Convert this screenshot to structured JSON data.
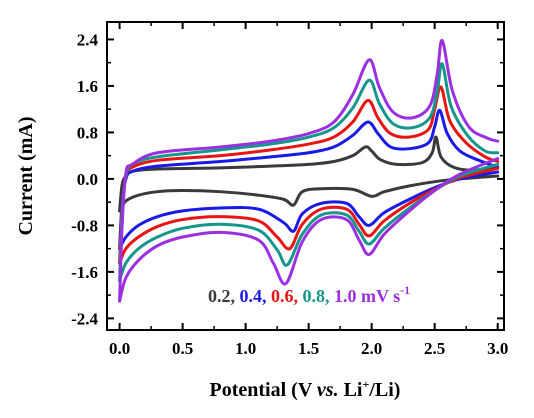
{
  "chart_data": {
    "type": "line",
    "xlabel": {
      "prefix": "Potential (V ",
      "vs": "vs.",
      "mid": " Li",
      "sup": "+",
      "suffix": "/Li)"
    },
    "ylabel": "Current (mA)",
    "xlim": [
      -0.1,
      3.05
    ],
    "ylim": [
      -2.6,
      2.7
    ],
    "xticks": [
      "0.0",
      "0.5",
      "1.0",
      "1.5",
      "2.0",
      "2.5",
      "3.0"
    ],
    "yticks": [
      "2.4",
      "1.6",
      "0.8",
      "0.0",
      "-0.8",
      "-1.6",
      "-2.4"
    ],
    "legend": {
      "entries": [
        {
          "label": "0.2",
          "color": "#3a3a3a"
        },
        {
          "label": "0.4",
          "color": "#1a1ae6"
        },
        {
          "label": "0.6",
          "color": "#e81414"
        },
        {
          "label": "0.8",
          "color": "#14968c"
        },
        {
          "label": "1.0",
          "color": "#9b30e0"
        }
      ],
      "separator": ", ",
      "unit": "mV s",
      "unit_sup": "-1"
    },
    "series": [
      {
        "color": "#3a3a3a",
        "scale": 0.27,
        "oxidation": [
          [
            0.0,
            -0.55
          ],
          [
            0.02,
            -0.1
          ],
          [
            0.05,
            0.05
          ],
          [
            0.1,
            0.13
          ],
          [
            0.3,
            0.17
          ],
          [
            0.8,
            0.19
          ],
          [
            1.2,
            0.22
          ],
          [
            1.5,
            0.25
          ],
          [
            1.7,
            0.3
          ],
          [
            1.85,
            0.4
          ],
          [
            1.95,
            0.55
          ],
          [
            2.0,
            0.48
          ],
          [
            2.07,
            0.33
          ],
          [
            2.2,
            0.25
          ],
          [
            2.4,
            0.28
          ],
          [
            2.48,
            0.45
          ],
          [
            2.51,
            0.72
          ],
          [
            2.55,
            0.38
          ],
          [
            2.65,
            0.2
          ],
          [
            2.8,
            0.15
          ],
          [
            3.0,
            0.2
          ]
        ],
        "reduction": [
          [
            3.0,
            0.05
          ],
          [
            2.6,
            -0.02
          ],
          [
            2.3,
            -0.12
          ],
          [
            2.1,
            -0.22
          ],
          [
            2.0,
            -0.3
          ],
          [
            1.85,
            -0.18
          ],
          [
            1.6,
            -0.17
          ],
          [
            1.45,
            -0.22
          ],
          [
            1.38,
            -0.45
          ],
          [
            1.3,
            -0.35
          ],
          [
            1.1,
            -0.28
          ],
          [
            0.8,
            -0.22
          ],
          [
            0.5,
            -0.2
          ],
          [
            0.3,
            -0.22
          ],
          [
            0.15,
            -0.28
          ],
          [
            0.05,
            -0.38
          ],
          [
            0.0,
            -0.55
          ]
        ]
      },
      {
        "color": "#1a1ae6",
        "scale": 0.54,
        "oxidation": [
          [
            0.0,
            -1.2
          ],
          [
            0.02,
            -0.4
          ],
          [
            0.05,
            0.0
          ],
          [
            0.1,
            0.13
          ],
          [
            0.3,
            0.22
          ],
          [
            0.8,
            0.3
          ],
          [
            1.2,
            0.38
          ],
          [
            1.5,
            0.45
          ],
          [
            1.7,
            0.55
          ],
          [
            1.85,
            0.75
          ],
          [
            1.97,
            0.98
          ],
          [
            2.05,
            0.78
          ],
          [
            2.15,
            0.55
          ],
          [
            2.3,
            0.52
          ],
          [
            2.45,
            0.62
          ],
          [
            2.5,
            0.9
          ],
          [
            2.54,
            1.18
          ],
          [
            2.6,
            0.78
          ],
          [
            2.7,
            0.48
          ],
          [
            2.85,
            0.32
          ],
          [
            3.0,
            0.2
          ]
        ],
        "reduction": [
          [
            3.0,
            0.12
          ],
          [
            2.7,
            0.0
          ],
          [
            2.5,
            -0.15
          ],
          [
            2.3,
            -0.35
          ],
          [
            2.1,
            -0.58
          ],
          [
            1.98,
            -0.8
          ],
          [
            1.9,
            -0.65
          ],
          [
            1.8,
            -0.42
          ],
          [
            1.6,
            -0.42
          ],
          [
            1.45,
            -0.6
          ],
          [
            1.38,
            -0.9
          ],
          [
            1.3,
            -0.75
          ],
          [
            1.1,
            -0.52
          ],
          [
            0.8,
            -0.5
          ],
          [
            0.5,
            -0.55
          ],
          [
            0.3,
            -0.65
          ],
          [
            0.15,
            -0.8
          ],
          [
            0.05,
            -1.0
          ],
          [
            0.0,
            -1.2
          ]
        ]
      },
      {
        "color": "#e81414",
        "scale": 0.75,
        "oxidation": [
          [
            0.0,
            -1.45
          ],
          [
            0.02,
            -0.5
          ],
          [
            0.05,
            0.05
          ],
          [
            0.1,
            0.2
          ],
          [
            0.3,
            0.32
          ],
          [
            0.8,
            0.4
          ],
          [
            1.2,
            0.5
          ],
          [
            1.5,
            0.6
          ],
          [
            1.7,
            0.72
          ],
          [
            1.85,
            0.98
          ],
          [
            1.97,
            1.35
          ],
          [
            2.05,
            1.05
          ],
          [
            2.15,
            0.78
          ],
          [
            2.3,
            0.72
          ],
          [
            2.45,
            0.85
          ],
          [
            2.5,
            1.2
          ],
          [
            2.55,
            1.58
          ],
          [
            2.62,
            1.0
          ],
          [
            2.75,
            0.62
          ],
          [
            2.9,
            0.38
          ],
          [
            3.0,
            0.3
          ]
        ],
        "reduction": [
          [
            3.0,
            0.18
          ],
          [
            2.7,
            0.02
          ],
          [
            2.5,
            -0.18
          ],
          [
            2.3,
            -0.42
          ],
          [
            2.1,
            -0.72
          ],
          [
            1.98,
            -0.98
          ],
          [
            1.9,
            -0.78
          ],
          [
            1.8,
            -0.52
          ],
          [
            1.6,
            -0.52
          ],
          [
            1.45,
            -0.78
          ],
          [
            1.35,
            -1.2
          ],
          [
            1.25,
            -1.0
          ],
          [
            1.1,
            -0.72
          ],
          [
            0.8,
            -0.65
          ],
          [
            0.5,
            -0.7
          ],
          [
            0.3,
            -0.82
          ],
          [
            0.15,
            -1.0
          ],
          [
            0.05,
            -1.2
          ],
          [
            0.0,
            -1.45
          ]
        ]
      },
      {
        "color": "#14968c",
        "scale": 0.9,
        "oxidation": [
          [
            0.0,
            -1.75
          ],
          [
            0.02,
            -0.6
          ],
          [
            0.05,
            0.05
          ],
          [
            0.1,
            0.25
          ],
          [
            0.3,
            0.38
          ],
          [
            0.8,
            0.5
          ],
          [
            1.2,
            0.6
          ],
          [
            1.5,
            0.72
          ],
          [
            1.7,
            0.88
          ],
          [
            1.85,
            1.22
          ],
          [
            1.98,
            1.7
          ],
          [
            2.06,
            1.3
          ],
          [
            2.17,
            0.95
          ],
          [
            2.32,
            0.88
          ],
          [
            2.46,
            1.05
          ],
          [
            2.52,
            1.5
          ],
          [
            2.56,
            1.98
          ],
          [
            2.63,
            1.25
          ],
          [
            2.76,
            0.75
          ],
          [
            2.9,
            0.48
          ],
          [
            3.0,
            0.45
          ]
        ],
        "reduction": [
          [
            3.0,
            0.25
          ],
          [
            2.7,
            0.05
          ],
          [
            2.5,
            -0.2
          ],
          [
            2.3,
            -0.5
          ],
          [
            2.1,
            -0.85
          ],
          [
            1.98,
            -1.12
          ],
          [
            1.9,
            -0.9
          ],
          [
            1.8,
            -0.62
          ],
          [
            1.6,
            -0.62
          ],
          [
            1.45,
            -0.95
          ],
          [
            1.33,
            -1.48
          ],
          [
            1.25,
            -1.22
          ],
          [
            1.1,
            -0.88
          ],
          [
            0.8,
            -0.78
          ],
          [
            0.5,
            -0.85
          ],
          [
            0.3,
            -1.0
          ],
          [
            0.15,
            -1.2
          ],
          [
            0.05,
            -1.45
          ],
          [
            0.0,
            -1.75
          ]
        ]
      },
      {
        "color": "#9b30e0",
        "scale": 1.0,
        "oxidation": [
          [
            0.0,
            -2.1
          ],
          [
            0.02,
            -0.8
          ],
          [
            0.05,
            0.1
          ],
          [
            0.1,
            0.25
          ],
          [
            0.3,
            0.45
          ],
          [
            0.8,
            0.55
          ],
          [
            1.2,
            0.65
          ],
          [
            1.5,
            0.78
          ],
          [
            1.7,
            0.98
          ],
          [
            1.85,
            1.45
          ],
          [
            1.98,
            2.05
          ],
          [
            2.06,
            1.58
          ],
          [
            2.17,
            1.15
          ],
          [
            2.32,
            1.05
          ],
          [
            2.46,
            1.25
          ],
          [
            2.52,
            1.8
          ],
          [
            2.56,
            2.38
          ],
          [
            2.64,
            1.52
          ],
          [
            2.77,
            0.9
          ],
          [
            2.92,
            0.7
          ],
          [
            3.0,
            0.65
          ]
        ],
        "reduction": [
          [
            3.0,
            0.35
          ],
          [
            2.7,
            0.08
          ],
          [
            2.5,
            -0.2
          ],
          [
            2.3,
            -0.55
          ],
          [
            2.1,
            -0.95
          ],
          [
            1.98,
            -1.3
          ],
          [
            1.9,
            -1.05
          ],
          [
            1.8,
            -0.7
          ],
          [
            1.6,
            -0.7
          ],
          [
            1.45,
            -1.08
          ],
          [
            1.32,
            -1.8
          ],
          [
            1.22,
            -1.45
          ],
          [
            1.1,
            -1.05
          ],
          [
            0.8,
            -0.92
          ],
          [
            0.5,
            -1.0
          ],
          [
            0.3,
            -1.15
          ],
          [
            0.15,
            -1.4
          ],
          [
            0.05,
            -1.7
          ],
          [
            0.0,
            -2.1
          ]
        ]
      }
    ]
  }
}
